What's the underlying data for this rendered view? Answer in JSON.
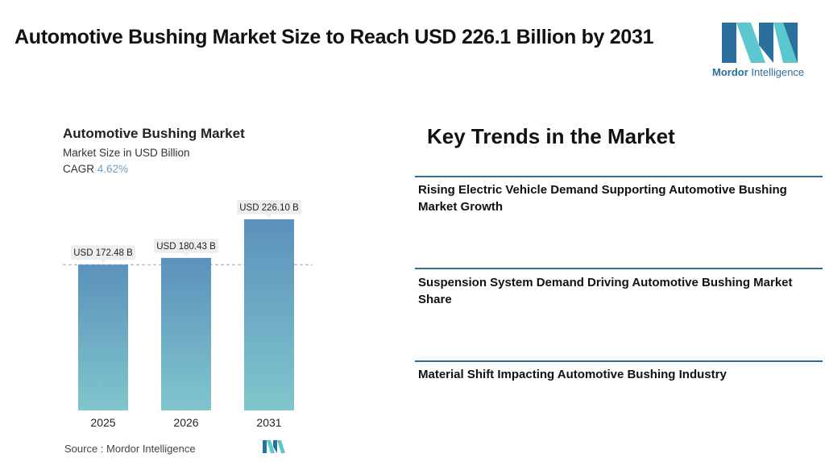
{
  "header": {
    "title": "Automotive Bushing Market Size to Reach USD 226.1 Billion by 2031",
    "logo_text_bold": "Mordor",
    "logo_text_rest": " Intelligence"
  },
  "chart_panel": {
    "title": "Automotive Bushing Market",
    "subtitle": "Market Size in USD Billion",
    "cagr_label": "CAGR",
    "cagr_value": "4.62%",
    "source": "Source :  Mordor Intelligence"
  },
  "chart_data": {
    "type": "bar",
    "categories": [
      "2025",
      "2026",
      "2031"
    ],
    "values": [
      172.48,
      180.43,
      226.1
    ],
    "data_labels": [
      "USD 172.48 B",
      "USD 180.43 B",
      "USD 226.10 B"
    ],
    "ylim": [
      0,
      226.1
    ],
    "grid": false,
    "reference_line": {
      "value": 172.48,
      "style": "dashed"
    },
    "colors": {
      "bar_top": "#5b91bb",
      "bar_bottom": "#80c6cc",
      "label_bg": "#eeeeee",
      "reference": "#7ea8c2"
    }
  },
  "trends": {
    "title": "Key Trends in the Market",
    "items": [
      "Rising Electric Vehicle Demand Supporting Automotive Bushing Market Growth",
      "Suspension System Demand Driving Automotive Bushing Market Share",
      "Material Shift Impacting Automotive Bushing Industry"
    ],
    "line_color": "#2f6f93"
  },
  "brand_colors": {
    "logo_blue": "#2b6f9c",
    "logo_teal": "#5bc7cf"
  }
}
